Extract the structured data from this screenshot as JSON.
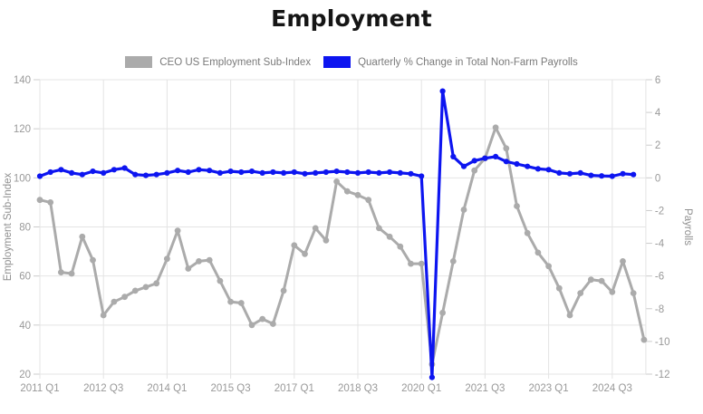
{
  "title": "Employment",
  "legend": [
    {
      "label": "CEO US Employment Sub-Index",
      "color": "#ababab"
    },
    {
      "label": "Quarterly % Change in Total Non-Farm Payrolls",
      "color": "#0d15f0"
    }
  ],
  "colors": {
    "gray_series": "#ababab",
    "blue_series": "#0d15f0",
    "grid": "#e4e4e4",
    "tick_text": "#999999",
    "axis_title_text": "#8f8f8f",
    "title_text": "#151515"
  },
  "chart_data": {
    "type": "line",
    "title": "Employment",
    "grid": true,
    "legend_position": "top",
    "x": [
      "2011 Q1",
      "2011 Q2",
      "2011 Q3",
      "2011 Q4",
      "2012 Q1",
      "2012 Q2",
      "2012 Q3",
      "2012 Q4",
      "2013 Q1",
      "2013 Q2",
      "2013 Q3",
      "2013 Q4",
      "2014 Q1",
      "2014 Q2",
      "2014 Q3",
      "2014 Q4",
      "2015 Q1",
      "2015 Q2",
      "2015 Q3",
      "2015 Q4",
      "2016 Q1",
      "2016 Q2",
      "2016 Q3",
      "2016 Q4",
      "2017 Q1",
      "2017 Q2",
      "2017 Q3",
      "2017 Q4",
      "2018 Q1",
      "2018 Q2",
      "2018 Q3",
      "2018 Q4",
      "2019 Q1",
      "2019 Q2",
      "2019 Q3",
      "2019 Q4",
      "2020 Q1",
      "2020 Q2",
      "2020 Q3",
      "2020 Q4",
      "2021 Q1",
      "2021 Q2",
      "2021 Q3",
      "2021 Q4",
      "2022 Q1",
      "2022 Q2",
      "2022 Q3",
      "2022 Q4",
      "2023 Q1",
      "2023 Q2",
      "2023 Q3",
      "2023 Q4",
      "2024 Q1",
      "2024 Q2",
      "2024 Q3",
      "2024 Q4",
      "2025 Q1",
      "2025 Q2"
    ],
    "x_tick_labels": [
      "2011 Q1",
      "2012 Q3",
      "2014 Q1",
      "2015 Q3",
      "2017 Q1",
      "2018 Q3",
      "2020 Q1",
      "2021 Q3",
      "2023 Q1",
      "2024 Q3"
    ],
    "x_tick_every": 6,
    "left_axis": {
      "label": "Employment Sub-Index",
      "range": [
        20,
        140
      ],
      "ticks": [
        140,
        120,
        100,
        80,
        60,
        40,
        20
      ]
    },
    "right_axis": {
      "label": "Payrolls",
      "range": [
        -12,
        6
      ],
      "ticks": [
        6,
        4,
        2,
        0,
        -2,
        -4,
        -6,
        -8,
        -10,
        -12
      ]
    },
    "series": [
      {
        "name": "CEO US Employment Sub-Index",
        "axis": "left",
        "color": "#ababab",
        "values": [
          91,
          90,
          61.5,
          61,
          76,
          66.5,
          44,
          49.5,
          51.5,
          54,
          55.5,
          57,
          67,
          78.5,
          63,
          66,
          66.5,
          58,
          49.5,
          49,
          40,
          42.5,
          40.5,
          54,
          72.5,
          69,
          79.5,
          74.5,
          98.5,
          94.5,
          93,
          91,
          79.5,
          76,
          72,
          65,
          65,
          24,
          45,
          66,
          87,
          103,
          108,
          120.5,
          112,
          88.5,
          77.5,
          69.5,
          64,
          55,
          44,
          53,
          58.5,
          58,
          53.5,
          66,
          53,
          34
        ]
      },
      {
        "name": "Quarterly % Change in Total Non-Farm Payrolls",
        "axis": "right",
        "color": "#0d15f0",
        "values": [
          0.1,
          0.35,
          0.5,
          0.3,
          0.2,
          0.4,
          0.3,
          0.5,
          0.6,
          0.2,
          0.15,
          0.2,
          0.3,
          0.45,
          0.35,
          0.5,
          0.45,
          0.3,
          0.4,
          0.35,
          0.4,
          0.3,
          0.35,
          0.3,
          0.35,
          0.25,
          0.3,
          0.35,
          0.4,
          0.35,
          0.3,
          0.35,
          0.3,
          0.35,
          0.3,
          0.25,
          0.1,
          -12.2,
          5.3,
          1.3,
          0.7,
          1.05,
          1.2,
          1.3,
          1.0,
          0.85,
          0.7,
          0.55,
          0.5,
          0.3,
          0.25,
          0.3,
          0.15,
          0.12,
          0.1,
          0.25,
          0.2,
          null
        ]
      }
    ]
  }
}
